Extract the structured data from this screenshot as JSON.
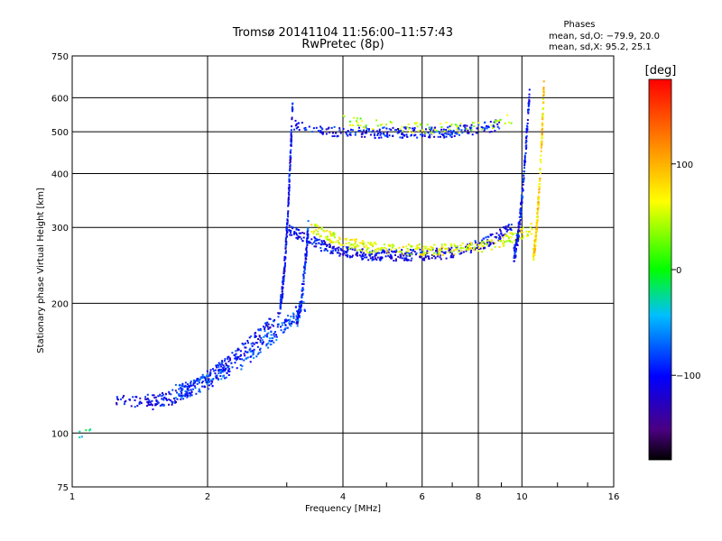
{
  "chart_data": {
    "type": "scatter",
    "title": "Tromsø 20141104 11:56:00–11:57:43",
    "subtitle": "RwPretec (8p)",
    "xlabel": "Frequency [MHz]",
    "ylabel": "Stationary phase Virtual Height [km]",
    "x_scale": "log",
    "y_scale": "log",
    "xlim": [
      1,
      16
    ],
    "ylim": [
      75,
      750
    ],
    "x_ticks": [
      1,
      2,
      4,
      6,
      8,
      10,
      16
    ],
    "y_ticks": [
      75,
      100,
      200,
      300,
      400,
      500,
      600,
      750
    ],
    "x_tick_labels": [
      "1",
      "2",
      "4",
      "6",
      "8",
      "10",
      "16"
    ],
    "y_tick_labels": [
      "75",
      "100",
      "200",
      "300",
      "400",
      "500",
      "600",
      "750"
    ],
    "grid": true,
    "phases_box": {
      "heading": "Phases",
      "line1": "mean, sd,O: −79.9, 20.0",
      "line2": "mean, sd,X:  95.2, 25.1"
    },
    "colorbar": {
      "label": "[deg]",
      "min": -180,
      "max": 180,
      "ticks": [
        100,
        0,
        -100
      ],
      "tick_labels": [
        "100",
        "0",
        "−100"
      ]
    },
    "traces": [
      {
        "id": "o-low-E",
        "x_range": [
          1.25,
          1.5
        ],
        "height": [
          118,
          120
        ],
        "phase_mean": -110,
        "count": 40
      },
      {
        "id": "o-F1-ramp",
        "x_range": [
          1.5,
          2.9
        ],
        "height": [
          118,
          190
        ],
        "phase_mean": -100,
        "count": 260
      },
      {
        "id": "x-F1-ramp",
        "x_range": [
          1.7,
          3.3
        ],
        "height": [
          125,
          200
        ],
        "phase_mean": -80,
        "count": 220
      },
      {
        "id": "o-F-cusp",
        "x_range": [
          2.9,
          3.1
        ],
        "height": [
          200,
          620
        ],
        "phase_mean": -105,
        "count": 200
      },
      {
        "id": "x-F-cusp",
        "x_range": [
          3.15,
          3.35
        ],
        "height": [
          180,
          300
        ],
        "phase_mean": -90,
        "count": 120
      },
      {
        "id": "o-F2",
        "x_range": [
          3.0,
          9.5
        ],
        "height": [
          245,
          300
        ],
        "phase_mean": -105,
        "count": 420
      },
      {
        "id": "x-F2",
        "x_range": [
          3.4,
          10.6
        ],
        "height": [
          255,
          300
        ],
        "phase_mean": 60,
        "count": 330
      },
      {
        "id": "o-F2-cusp",
        "x_range": [
          9.6,
          10.4
        ],
        "height": [
          260,
          620
        ],
        "phase_mean": -100,
        "count": 180
      },
      {
        "id": "x-F2-cusp",
        "x_range": [
          10.6,
          11.2
        ],
        "height": [
          260,
          640
        ],
        "phase_mean": 80,
        "count": 160
      },
      {
        "id": "o-multihop",
        "x_range": [
          3.1,
          9.0
        ],
        "height": [
          490,
          520
        ],
        "phase_mean": -100,
        "count": 260
      },
      {
        "id": "x-multihop",
        "x_range": [
          4.0,
          9.5
        ],
        "height": [
          500,
          540
        ],
        "phase_mean": 40,
        "count": 80
      },
      {
        "id": "isolated",
        "x_range": [
          1.03,
          1.1
        ],
        "height": [
          98,
          102
        ],
        "phase_mean": -20,
        "count": 6
      }
    ]
  }
}
